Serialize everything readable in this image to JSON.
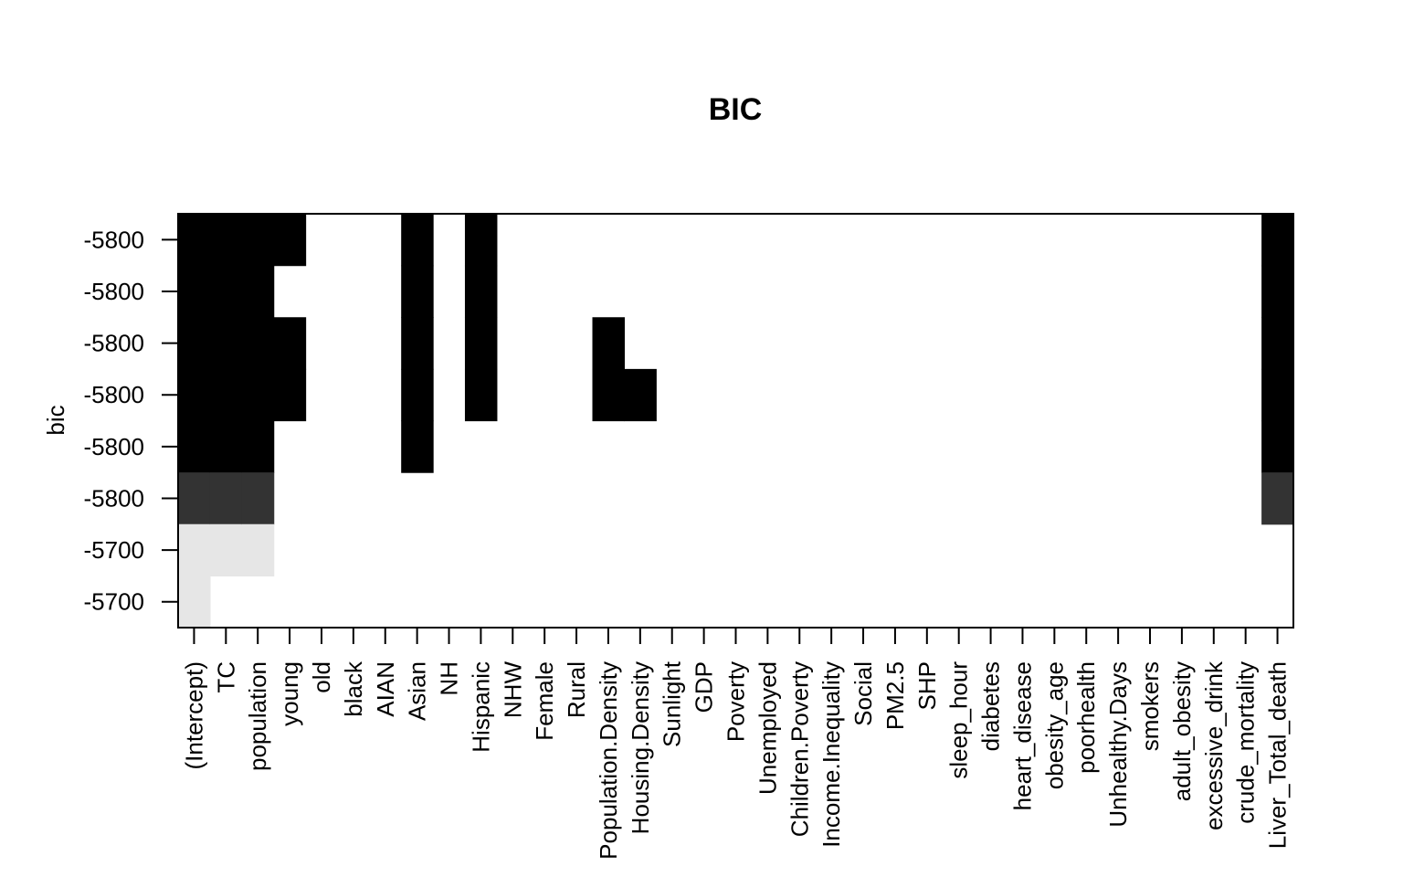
{
  "chart_data": {
    "type": "heatmap",
    "title": "BIC",
    "ylabel": "bic",
    "xlabel": "",
    "y_tick_labels": [
      "-5800",
      "-5800",
      "-5800",
      "-5800",
      "-5800",
      "-5800",
      "-5700",
      "-5700"
    ],
    "variables": [
      "(Intercept)",
      "TC",
      "population",
      "young",
      "old",
      "black",
      "AIAN",
      "Asian",
      "NH",
      "Hispanic",
      "NHW",
      "Female",
      "Rural",
      "Population.Density",
      "Housing.Density",
      "Sunlight",
      "GDP",
      "Poverty",
      "Unemployed",
      "Children.Poverty",
      "Income.Inequality",
      "Social",
      "PM2.5",
      "SHP",
      "sleep_hour",
      "diabetes",
      "heart_disease",
      "obesity_age",
      "poorhealth",
      "Unhealthy.Days",
      "smokers",
      "adult_obesity",
      "excessive_drink",
      "crude_mortality",
      "Liver_Total_death"
    ],
    "shade_colors": {
      "1": "#000000",
      "2": "#333333",
      "3": "#e6e6e6",
      "0": "#ffffff"
    },
    "band_pattern": [
      {
        "var": "(Intercept)",
        "bands": [
          1,
          1,
          1,
          1,
          1,
          2,
          3,
          3
        ]
      },
      {
        "var": "TC",
        "bands": [
          1,
          1,
          1,
          1,
          1,
          2,
          3,
          0
        ]
      },
      {
        "var": "population",
        "bands": [
          1,
          1,
          1,
          1,
          1,
          2,
          3,
          0
        ]
      },
      {
        "var": "young",
        "bands": [
          1,
          0,
          1,
          1,
          0,
          0,
          0,
          0
        ]
      },
      {
        "var": "Asian",
        "bands": [
          1,
          1,
          1,
          1,
          1,
          0,
          0,
          0
        ]
      },
      {
        "var": "Hispanic",
        "bands": [
          1,
          1,
          1,
          1,
          0,
          0,
          0,
          0
        ]
      },
      {
        "var": "Population.Density",
        "bands": [
          0,
          0,
          1,
          1,
          0,
          0,
          0,
          0
        ]
      },
      {
        "var": "Housing.Density",
        "bands": [
          0,
          0,
          0,
          1,
          0,
          0,
          0,
          0
        ]
      },
      {
        "var": "Liver_Total_death",
        "bands": [
          1,
          1,
          1,
          1,
          1,
          2,
          0,
          0
        ]
      }
    ]
  }
}
